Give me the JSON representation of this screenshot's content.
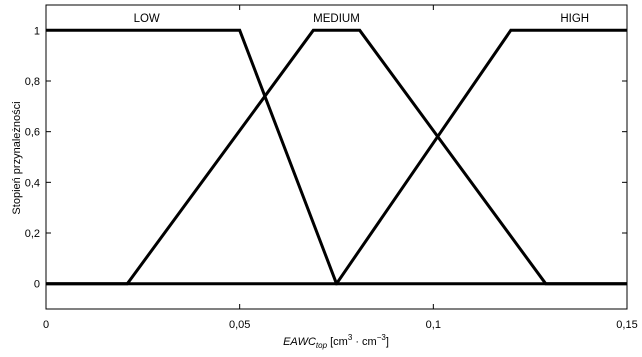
{
  "chart_data": {
    "type": "line",
    "xlabel": {
      "main": "EAWC",
      "sub": "top",
      "unit_prefix": " [cm",
      "exp1": "3",
      "unit_mid": " · cm",
      "exp2": "−3",
      "unit_suffix": "]"
    },
    "ylabel": "Stopień przynależności",
    "xlim": [
      0,
      0.15
    ],
    "ylim": [
      -0.1,
      1.1
    ],
    "x_ticks": [
      {
        "value": 0,
        "label": "0"
      },
      {
        "value": 0.05,
        "label": "0,05"
      },
      {
        "value": 0.1,
        "label": "0,1"
      },
      {
        "value": 0.15,
        "label": "0,15"
      }
    ],
    "y_ticks": [
      {
        "value": 0,
        "label": "0"
      },
      {
        "value": 0.2,
        "label": "0,2"
      },
      {
        "value": 0.4,
        "label": "0,4"
      },
      {
        "value": 0.6,
        "label": "0,6"
      },
      {
        "value": 0.8,
        "label": "0,8"
      },
      {
        "value": 1,
        "label": "1"
      }
    ],
    "grid": false,
    "legend": "none",
    "series": [
      {
        "name": "LOW",
        "label_x": 0.026,
        "x": [
          0,
          0.05,
          0.075,
          0.15
        ],
        "y": [
          1,
          1,
          0,
          0
        ]
      },
      {
        "name": "MEDIUM",
        "label_x": 0.075,
        "x": [
          0,
          0.021,
          0.069,
          0.081,
          0.129,
          0.15
        ],
        "y": [
          0,
          0,
          1,
          1,
          0,
          0
        ]
      },
      {
        "name": "HIGH",
        "label_x": 0.1365,
        "x": [
          0,
          0.075,
          0.12,
          0.15
        ],
        "y": [
          0,
          0,
          1,
          1
        ]
      }
    ]
  }
}
